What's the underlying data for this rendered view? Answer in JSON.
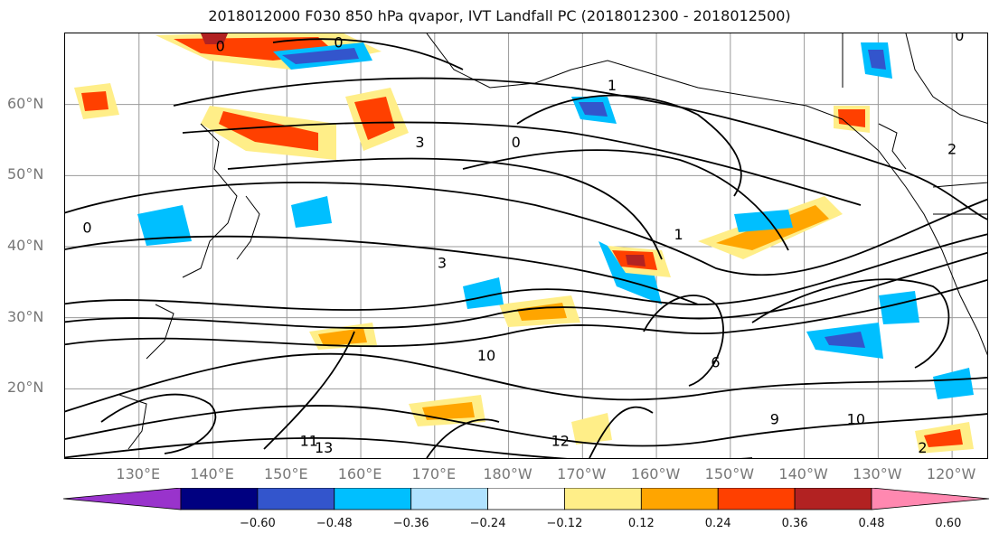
{
  "figure": {
    "title": "2018012000 F030 850 hPa qvapor, IVT Landfall PC (2018012300 - 2018012500)"
  },
  "map": {
    "projection": "equirectangular",
    "lon_range": [
      120,
      245
    ],
    "lat_range": [
      10,
      70
    ],
    "gridlines": true,
    "lat_ticks": [
      {
        "lat": 60,
        "label": "60°N"
      },
      {
        "lat": 50,
        "label": "50°N"
      },
      {
        "lat": 40,
        "label": "40°N"
      },
      {
        "lat": 30,
        "label": "30°N"
      },
      {
        "lat": 20,
        "label": "20°N"
      }
    ],
    "lon_ticks": [
      {
        "lon": 130,
        "label": "130°E"
      },
      {
        "lon": 140,
        "label": "140°E"
      },
      {
        "lon": 150,
        "label": "150°E"
      },
      {
        "lon": 160,
        "label": "160°E"
      },
      {
        "lon": 170,
        "label": "170°E"
      },
      {
        "lon": 180,
        "label": "180°W"
      },
      {
        "lon": 190,
        "label": "170°W"
      },
      {
        "lon": 200,
        "label": "160°W"
      },
      {
        "lon": 210,
        "label": "150°W"
      },
      {
        "lon": 220,
        "label": "140°W"
      },
      {
        "lon": 230,
        "label": "130°W"
      },
      {
        "lon": 240,
        "label": "120°W"
      }
    ],
    "contour_labels": [
      {
        "text": "0",
        "lon": 141,
        "lat": 67.5
      },
      {
        "text": "0",
        "lon": 157,
        "lat": 68
      },
      {
        "text": "0",
        "lon": 123,
        "lat": 42
      },
      {
        "text": "0",
        "lon": 181,
        "lat": 54
      },
      {
        "text": "0",
        "lon": 241,
        "lat": 69
      },
      {
        "text": "3",
        "lon": 168,
        "lat": 54
      },
      {
        "text": "3",
        "lon": 171,
        "lat": 37
      },
      {
        "text": "1",
        "lon": 194,
        "lat": 62
      },
      {
        "text": "1",
        "lon": 203,
        "lat": 41
      },
      {
        "text": "2",
        "lon": 240,
        "lat": 53
      },
      {
        "text": "6",
        "lon": 208,
        "lat": 23
      },
      {
        "text": "9",
        "lon": 216,
        "lat": 15
      },
      {
        "text": "10",
        "lon": 177,
        "lat": 24
      },
      {
        "text": "10",
        "lon": 227,
        "lat": 15
      },
      {
        "text": "11",
        "lon": 153,
        "lat": 12
      },
      {
        "text": "13",
        "lon": 155,
        "lat": 11
      },
      {
        "text": "12",
        "lon": 187,
        "lat": 12
      },
      {
        "text": "2",
        "lon": 236,
        "lat": 11
      }
    ]
  },
  "colorbar": {
    "extend": "both",
    "levels": [
      -0.72,
      -0.6,
      -0.48,
      -0.36,
      -0.24,
      -0.12,
      0.12,
      0.24,
      0.36,
      0.48,
      0.6,
      0.72
    ],
    "colors": [
      "#9933cc",
      "#000080",
      "#3355cc",
      "#00bfff",
      "#b0e2ff",
      "#ffffff",
      "#ffee88",
      "#ffa500",
      "#ff4000",
      "#b22222",
      "#ff88b0"
    ],
    "tick_labels": [
      "−0.60",
      "−0.48",
      "−0.36",
      "−0.24",
      "−0.12",
      "0.12",
      "0.24",
      "0.36",
      "0.48",
      "0.60"
    ]
  }
}
